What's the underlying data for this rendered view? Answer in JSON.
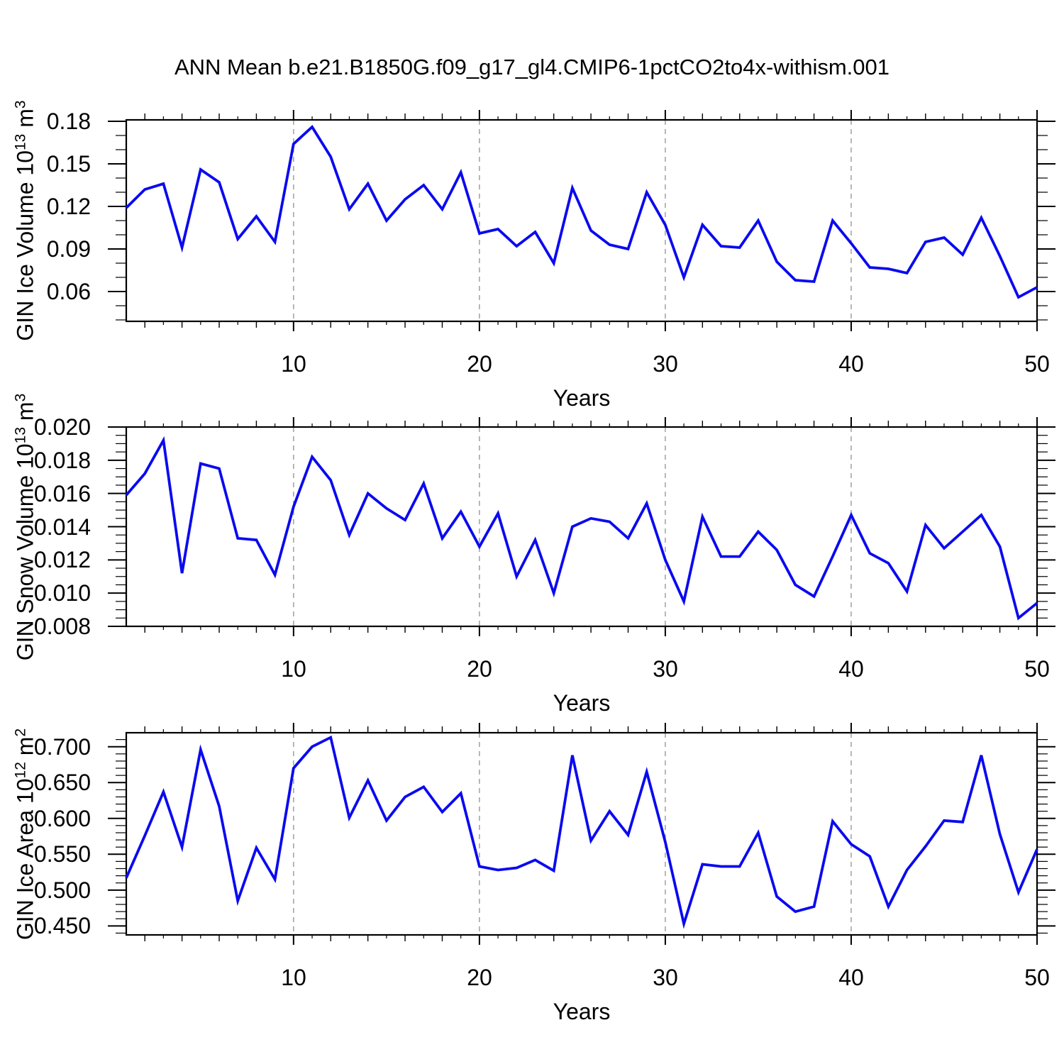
{
  "title": "ANN Mean b.e21.B1850G.f09_g17_gl4.CMIP6-1pctCO2to4x-withism.001",
  "colors": {
    "line": "#0a0af0",
    "axis": "#000000",
    "gridline": "#999999",
    "background": "#ffffff"
  },
  "x_years": [
    1,
    2,
    3,
    4,
    5,
    6,
    7,
    8,
    9,
    10,
    11,
    12,
    13,
    14,
    15,
    16,
    17,
    18,
    19,
    20,
    21,
    22,
    23,
    24,
    25,
    26,
    27,
    28,
    29,
    30,
    31,
    32,
    33,
    34,
    35,
    36,
    37,
    38,
    39,
    40,
    41,
    42,
    43,
    44,
    45,
    46,
    47,
    48,
    49,
    50
  ],
  "chart_data": [
    {
      "type": "line",
      "name": "gin-ice-volume",
      "ylabel_base1": "GIN Ice Volume 10",
      "ylabel_sup1": "13",
      "ylabel_base2": " m",
      "ylabel_sup2": "3",
      "xlabel": "Years",
      "x_range": [
        1,
        50
      ],
      "x_major_ticks": [
        10,
        20,
        30,
        40,
        50
      ],
      "x_gridlines": [
        10,
        20,
        30,
        40
      ],
      "grid_style": "vertical-dashed",
      "legend": "none",
      "ylim": [
        0.039,
        0.181
      ],
      "y_major_values": [
        0.06,
        0.09,
        0.12,
        0.15,
        0.18
      ],
      "y_major_labels": [
        "0.06",
        "0.09",
        "0.12",
        "0.15",
        "0.18"
      ],
      "y_minor_step": 0.01,
      "values": [
        0.119,
        0.132,
        0.136,
        0.091,
        0.146,
        0.137,
        0.097,
        0.113,
        0.095,
        0.164,
        0.176,
        0.155,
        0.118,
        0.136,
        0.11,
        0.125,
        0.135,
        0.118,
        0.144,
        0.101,
        0.104,
        0.092,
        0.102,
        0.08,
        0.133,
        0.103,
        0.093,
        0.09,
        0.13,
        0.107,
        0.07,
        0.107,
        0.092,
        0.091,
        0.11,
        0.081,
        0.068,
        0.067,
        0.11,
        0.094,
        0.077,
        0.076,
        0.073,
        0.095,
        0.098,
        0.086,
        0.112,
        0.085,
        0.056,
        0.063
      ]
    },
    {
      "type": "line",
      "name": "gin-snow-volume",
      "ylabel_base1": "GIN Snow Volume 10",
      "ylabel_sup1": "13",
      "ylabel_base2": " m",
      "ylabel_sup2": "3",
      "xlabel": "Years",
      "x_range": [
        1,
        50
      ],
      "x_major_ticks": [
        10,
        20,
        30,
        40,
        50
      ],
      "x_gridlines": [
        10,
        20,
        30,
        40
      ],
      "grid_style": "vertical-dashed",
      "legend": "none",
      "ylim": [
        0.008,
        0.02
      ],
      "y_major_values": [
        0.008,
        0.01,
        0.012,
        0.014,
        0.016,
        0.018,
        0.02
      ],
      "y_major_labels": [
        "0.008",
        "0.010",
        "0.012",
        "0.014",
        "0.016",
        "0.018",
        "0.020"
      ],
      "y_minor_step": 0.0005,
      "values": [
        0.0159,
        0.0172,
        0.0192,
        0.0112,
        0.0178,
        0.0175,
        0.0133,
        0.0132,
        0.0111,
        0.0152,
        0.0182,
        0.0168,
        0.0135,
        0.016,
        0.0151,
        0.0144,
        0.0166,
        0.0133,
        0.0149,
        0.0128,
        0.0148,
        0.011,
        0.0132,
        0.01,
        0.014,
        0.0145,
        0.0143,
        0.0133,
        0.0154,
        0.012,
        0.0095,
        0.0146,
        0.0122,
        0.0122,
        0.0137,
        0.0126,
        0.0105,
        0.0098,
        0.0122,
        0.0147,
        0.0124,
        0.0118,
        0.0101,
        0.0141,
        0.0127,
        0.0137,
        0.0147,
        0.0128,
        0.0085,
        0.0094
      ]
    },
    {
      "type": "line",
      "name": "gin-ice-area",
      "ylabel_base1": "GIN Ice Area 10",
      "ylabel_sup1": "12",
      "ylabel_base2": " m",
      "ylabel_sup2": "2",
      "xlabel": "Years",
      "x_range": [
        1,
        50
      ],
      "x_major_ticks": [
        10,
        20,
        30,
        40,
        50
      ],
      "x_gridlines": [
        10,
        20,
        30,
        40
      ],
      "grid_style": "vertical-dashed",
      "legend": "none",
      "ylim": [
        0.4375,
        0.7195
      ],
      "y_major_values": [
        0.45,
        0.5,
        0.55,
        0.6,
        0.65,
        0.7
      ],
      "y_major_labels": [
        "0.450",
        "0.500",
        "0.550",
        "0.600",
        "0.650",
        "0.700"
      ],
      "y_minor_step": 0.01,
      "values": [
        0.517,
        0.576,
        0.637,
        0.56,
        0.696,
        0.617,
        0.485,
        0.559,
        0.515,
        0.67,
        0.7,
        0.713,
        0.601,
        0.653,
        0.597,
        0.63,
        0.644,
        0.609,
        0.635,
        0.533,
        0.528,
        0.531,
        0.542,
        0.527,
        0.688,
        0.569,
        0.61,
        0.577,
        0.665,
        0.567,
        0.453,
        0.536,
        0.533,
        0.533,
        0.58,
        0.491,
        0.47,
        0.477,
        0.596,
        0.564,
        0.547,
        0.477,
        0.528,
        0.561,
        0.597,
        0.595,
        0.688,
        0.578,
        0.497,
        0.557
      ]
    }
  ]
}
